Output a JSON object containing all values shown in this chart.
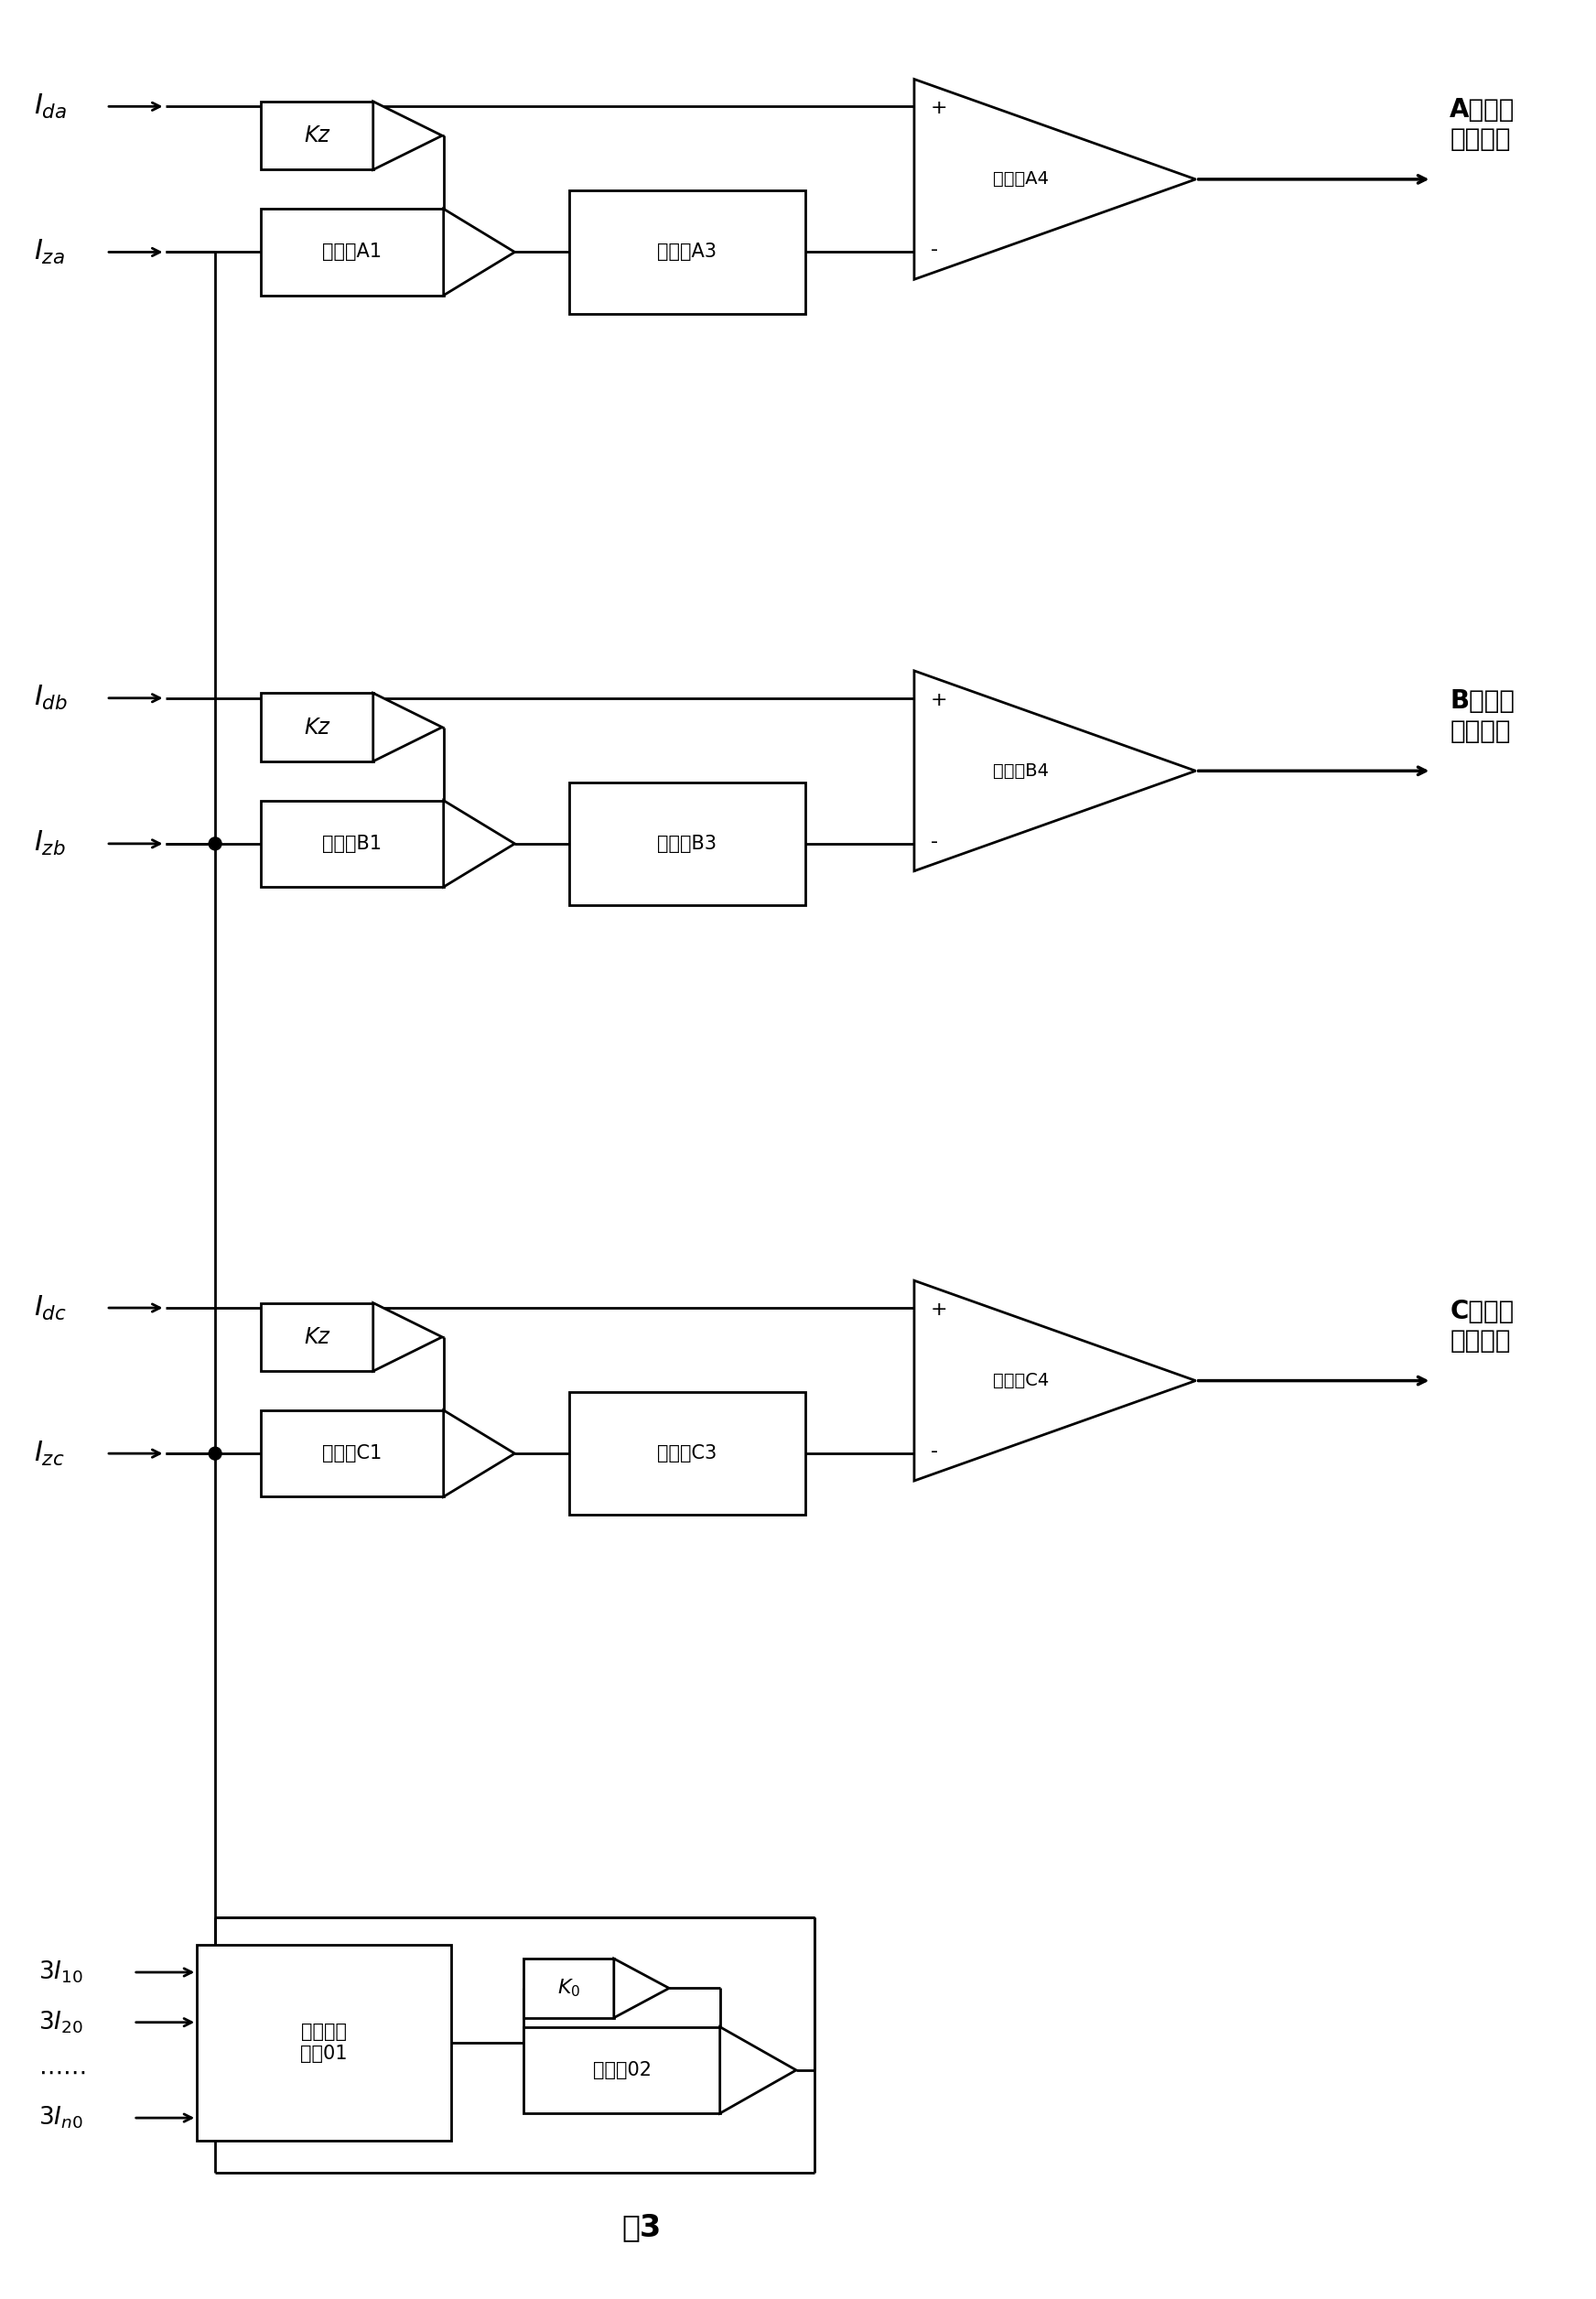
{
  "background_color": "#ffffff",
  "line_color": "#000000",
  "fig_width": 17.44,
  "fig_height": 25.12,
  "phases": [
    "A",
    "B",
    "C"
  ],
  "kz_label": "Kz",
  "multiplier_labels": [
    "乘法器A1",
    "乘法器B1",
    "乘法器C1"
  ],
  "adder_labels": [
    "加法器A3",
    "加法器B3",
    "加法器C3"
  ],
  "comparator_labels": [
    "比较器A4",
    "比较器B4",
    "比较器C4"
  ],
  "output_labels": [
    "A相比差\n动作信号",
    "B相比差\n动作信号",
    "C相比差\n动作信号"
  ],
  "max_circuit_label": "求最大值\n电路01",
  "k0_label": "K₀",
  "multiplier02_label": "乘法器02",
  "figure_label": "图3",
  "bottom_inputs": [
    "3I₁₀",
    "3I₂₀",
    "••••••••",
    "3Iₙ₀"
  ]
}
